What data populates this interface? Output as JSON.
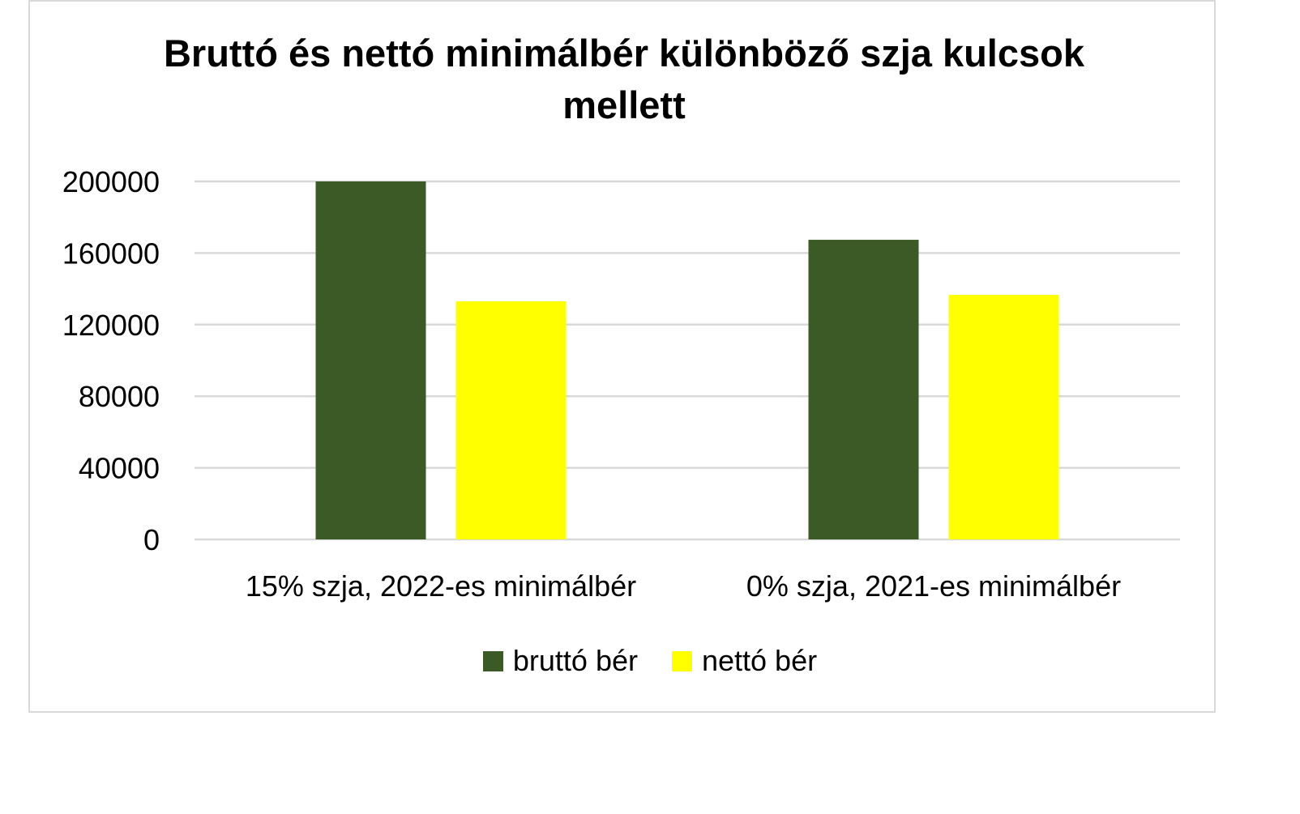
{
  "chart_data": {
    "type": "bar",
    "title": "Bruttó és nettó minimálbér különböző szja kulcsok mellett",
    "categories": [
      "15% szja, 2022-es minimálbér",
      "0% szja, 2021-es minimálbér"
    ],
    "series": [
      {
        "name": "bruttó bér",
        "values": [
          200000,
          167400
        ],
        "color": "#3b5a25"
      },
      {
        "name": "nettó bér",
        "values": [
          133000,
          136600
        ],
        "color": "#ffff00"
      }
    ],
    "ylim": [
      0,
      200000
    ],
    "yticks": [
      0,
      40000,
      80000,
      120000,
      160000,
      200000
    ],
    "ytick_labels": [
      "0",
      "40000",
      "80000",
      "120000",
      "160000",
      "200000"
    ],
    "grid": true,
    "legend_position": "bottom",
    "xlabel": "",
    "ylabel": ""
  }
}
